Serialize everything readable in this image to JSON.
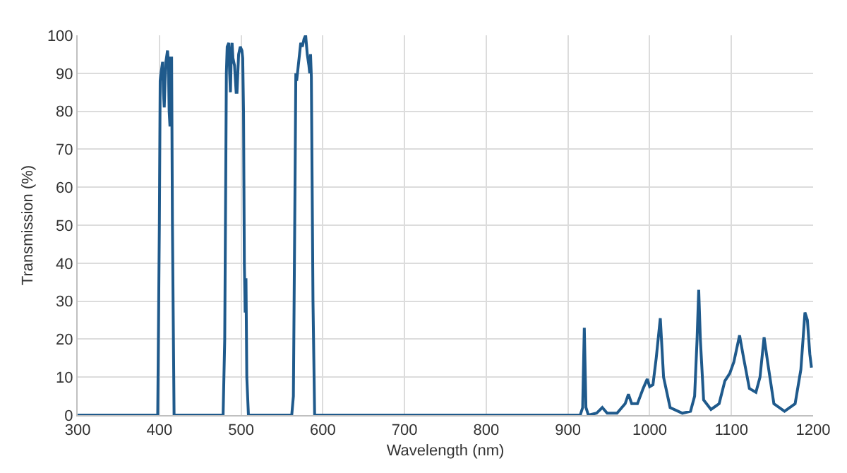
{
  "chart_data": {
    "type": "line",
    "xlabel": "Wavelength (nm)",
    "ylabel": "Transmission (%)",
    "x": [
      300,
      398,
      400,
      401,
      402,
      404,
      405,
      406,
      407,
      408,
      410,
      411,
      412,
      413,
      414,
      415,
      416,
      418,
      478,
      480,
      482,
      483,
      485,
      486,
      487,
      488,
      489,
      490,
      492,
      494,
      495,
      497,
      499,
      501,
      502,
      503,
      504,
      505,
      506,
      507,
      509,
      562,
      564,
      566,
      567,
      568,
      569,
      571,
      573,
      575,
      577,
      579,
      581,
      583,
      584,
      585,
      586,
      588,
      590,
      915,
      918,
      920,
      922,
      925,
      935,
      942,
      948,
      960,
      970,
      974,
      978,
      985,
      992,
      997,
      1000,
      1004,
      1008,
      1013,
      1017,
      1025,
      1040,
      1050,
      1055,
      1058,
      1060,
      1062,
      1066,
      1075,
      1085,
      1092,
      1098,
      1103,
      1110,
      1115,
      1122,
      1130,
      1135,
      1140,
      1145,
      1152,
      1165,
      1178,
      1185,
      1190,
      1193,
      1196,
      1198
    ],
    "series": [
      {
        "color": "#1f5a8c",
        "values": [
          0,
          0,
          50,
          88,
          90,
          93,
          85,
          81,
          88,
          93,
          96,
          93,
          80,
          76,
          94,
          94,
          50,
          0,
          0,
          20,
          90,
          97,
          98,
          90,
          85,
          95,
          98,
          94,
          92,
          85,
          85,
          95,
          97,
          96,
          94,
          80,
          40,
          27,
          36,
          10,
          0,
          0,
          5,
          60,
          90,
          88,
          90,
          94,
          98,
          97,
          99,
          100,
          95,
          92,
          90,
          95,
          89,
          30,
          0,
          0,
          2,
          23,
          2,
          0,
          0.5,
          2,
          0.5,
          0.5,
          3,
          5.5,
          3,
          3,
          7,
          9.5,
          7.5,
          8,
          15,
          25.5,
          10,
          2,
          0.5,
          1,
          5,
          20,
          33,
          20,
          4,
          1.5,
          3,
          9,
          11,
          14,
          21,
          15,
          7,
          6,
          10,
          20.5,
          13,
          3,
          1,
          3,
          12,
          27,
          25,
          16,
          12.5
        ]
      }
    ],
    "xlim": [
      300,
      1200
    ],
    "xticks": [
      300,
      400,
      500,
      600,
      700,
      800,
      900,
      1000,
      1100,
      1200
    ],
    "ylim": [
      0,
      100
    ],
    "yticks": [
      0,
      10,
      20,
      30,
      40,
      50,
      60,
      70,
      80,
      90,
      100
    ],
    "grid": true,
    "marker": "none",
    "line_style": "solid"
  }
}
